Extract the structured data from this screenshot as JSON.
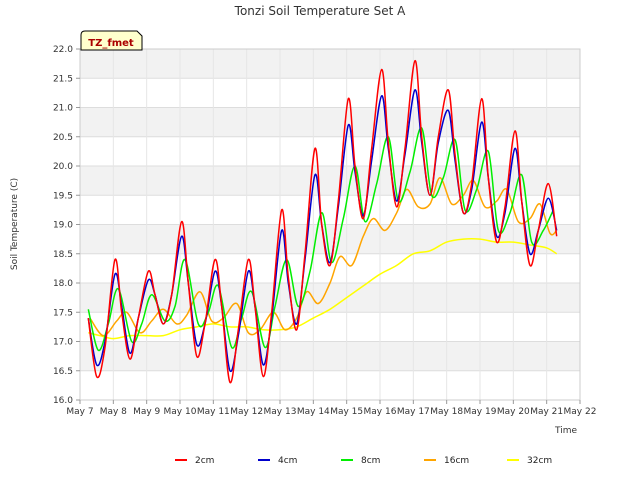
{
  "chart_data": {
    "type": "line",
    "title": "Tonzi Soil Temperature Set A",
    "xlabel": "Time",
    "ylabel": "Soil Temperature (C)",
    "tag": "TZ_fmet",
    "ylim": [
      16.0,
      22.0
    ],
    "yticks": [
      "16.0",
      "16.5",
      "17.0",
      "17.5",
      "18.0",
      "18.5",
      "19.0",
      "19.5",
      "20.0",
      "20.5",
      "21.0",
      "21.5",
      "22.0"
    ],
    "xlim": [
      7,
      22
    ],
    "xticks": [
      {
        "day": 7,
        "label": "May 7"
      },
      {
        "day": 8,
        "label": "May 8"
      },
      {
        "day": 9,
        "label": "May 9"
      },
      {
        "day": 10,
        "label": "May 10"
      },
      {
        "day": 11,
        "label": "May 11"
      },
      {
        "day": 12,
        "label": "May 12"
      },
      {
        "day": 13,
        "label": "May 13"
      },
      {
        "day": 14,
        "label": "May 14"
      },
      {
        "day": 15,
        "label": "May 15"
      },
      {
        "day": 16,
        "label": "May 16"
      },
      {
        "day": 17,
        "label": "May 17"
      },
      {
        "day": 18,
        "label": "May 18"
      },
      {
        "day": 19,
        "label": "May 19"
      },
      {
        "day": 20,
        "label": "May 20"
      },
      {
        "day": 21,
        "label": "May 21"
      },
      {
        "day": 22,
        "label": "May 22"
      }
    ],
    "grid": true,
    "legend_position": "bottom",
    "x_unit": "day of May",
    "series": [
      {
        "name": "2cm",
        "color": "#ff0000",
        "x": [
          7.25,
          7.5,
          7.75,
          8.05,
          8.25,
          8.5,
          8.75,
          9.05,
          9.25,
          9.5,
          9.75,
          10.05,
          10.25,
          10.5,
          10.75,
          11.05,
          11.25,
          11.5,
          11.75,
          12.05,
          12.25,
          12.5,
          12.75,
          13.05,
          13.25,
          13.5,
          13.75,
          14.05,
          14.25,
          14.5,
          14.75,
          15.05,
          15.25,
          15.5,
          15.75,
          16.05,
          16.25,
          16.5,
          16.75,
          17.05,
          17.25,
          17.5,
          17.75,
          18.05,
          18.25,
          18.5,
          18.75,
          19.05,
          19.25,
          19.5,
          19.75,
          20.05,
          20.25,
          20.5,
          20.75,
          21.05,
          21.3
        ],
        "values": [
          17.4,
          16.4,
          16.9,
          18.4,
          17.5,
          16.7,
          17.4,
          18.2,
          17.8,
          17.3,
          17.8,
          19.05,
          18.0,
          16.75,
          17.3,
          18.4,
          17.6,
          16.3,
          17.2,
          18.4,
          17.6,
          16.4,
          17.5,
          19.25,
          18.1,
          17.2,
          18.5,
          20.3,
          19.0,
          18.3,
          19.4,
          21.15,
          20.0,
          19.1,
          20.3,
          21.65,
          20.4,
          19.3,
          20.3,
          21.8,
          20.5,
          19.5,
          20.5,
          21.3,
          20.2,
          19.2,
          19.7,
          21.15,
          19.8,
          18.7,
          19.3,
          20.6,
          19.4,
          18.3,
          18.9,
          19.7,
          18.8
        ]
      },
      {
        "name": "4cm",
        "color": "#0000cc",
        "x": [
          7.25,
          7.5,
          7.75,
          8.05,
          8.25,
          8.5,
          8.75,
          9.05,
          9.25,
          9.5,
          9.75,
          10.05,
          10.25,
          10.5,
          10.75,
          11.05,
          11.25,
          11.5,
          11.75,
          12.05,
          12.25,
          12.5,
          12.75,
          13.05,
          13.25,
          13.5,
          13.75,
          14.05,
          14.25,
          14.5,
          14.75,
          15.05,
          15.25,
          15.5,
          15.75,
          16.05,
          16.25,
          16.5,
          16.75,
          17.05,
          17.25,
          17.5,
          17.75,
          18.05,
          18.25,
          18.5,
          18.75,
          19.05,
          19.25,
          19.5,
          19.75,
          20.05,
          20.25,
          20.5,
          20.75,
          21.05,
          21.3
        ],
        "values": [
          17.4,
          16.6,
          17.0,
          18.15,
          17.6,
          16.8,
          17.4,
          18.05,
          17.8,
          17.3,
          17.8,
          18.8,
          18.0,
          16.95,
          17.3,
          18.2,
          17.6,
          16.5,
          17.1,
          18.2,
          17.6,
          16.6,
          17.4,
          18.9,
          18.0,
          17.3,
          18.4,
          19.85,
          19.0,
          18.35,
          19.3,
          20.7,
          19.9,
          19.15,
          20.1,
          21.2,
          20.3,
          19.4,
          20.2,
          21.3,
          20.4,
          19.5,
          20.4,
          20.95,
          20.1,
          19.2,
          19.6,
          20.75,
          19.8,
          18.8,
          19.2,
          20.3,
          19.4,
          18.5,
          18.9,
          19.45,
          18.9
        ]
      },
      {
        "name": "8cm",
        "color": "#00ee00",
        "x": [
          7.25,
          7.55,
          7.85,
          8.15,
          8.55,
          8.85,
          9.15,
          9.55,
          9.85,
          10.15,
          10.55,
          10.85,
          11.15,
          11.55,
          11.85,
          12.15,
          12.55,
          12.85,
          13.2,
          13.55,
          13.9,
          14.25,
          14.55,
          14.9,
          15.25,
          15.55,
          15.9,
          16.25,
          16.55,
          16.9,
          17.25,
          17.55,
          17.9,
          18.25,
          18.55,
          18.9,
          19.25,
          19.55,
          19.9,
          20.25,
          20.55,
          20.9,
          21.2
        ],
        "values": [
          17.55,
          16.85,
          17.3,
          17.9,
          17.0,
          17.3,
          17.8,
          17.35,
          17.6,
          18.4,
          17.3,
          17.5,
          17.95,
          16.9,
          17.4,
          17.85,
          16.9,
          17.6,
          18.4,
          17.6,
          18.2,
          19.2,
          18.35,
          19.1,
          20.0,
          19.05,
          19.7,
          20.5,
          19.4,
          19.9,
          20.65,
          19.5,
          19.8,
          20.45,
          19.25,
          19.6,
          20.25,
          18.9,
          19.2,
          19.85,
          18.7,
          18.9,
          19.25
        ]
      },
      {
        "name": "16cm",
        "color": "#ffa500",
        "x": [
          7.3,
          7.7,
          8.1,
          8.4,
          8.8,
          9.15,
          9.5,
          9.9,
          10.2,
          10.6,
          10.95,
          11.3,
          11.7,
          12.05,
          12.4,
          12.8,
          13.15,
          13.5,
          13.8,
          14.15,
          14.5,
          14.8,
          15.15,
          15.5,
          15.8,
          16.15,
          16.5,
          16.8,
          17.15,
          17.5,
          17.8,
          18.15,
          18.5,
          18.8,
          19.15,
          19.5,
          19.8,
          20.15,
          20.5,
          20.8,
          21.1,
          21.3
        ],
        "values": [
          17.4,
          17.1,
          17.35,
          17.5,
          17.15,
          17.35,
          17.55,
          17.3,
          17.45,
          17.85,
          17.35,
          17.4,
          17.65,
          17.15,
          17.2,
          17.5,
          17.2,
          17.4,
          17.85,
          17.65,
          18.0,
          18.45,
          18.3,
          18.8,
          19.1,
          18.9,
          19.2,
          19.6,
          19.3,
          19.35,
          19.8,
          19.35,
          19.5,
          19.75,
          19.3,
          19.4,
          19.6,
          19.05,
          19.1,
          19.35,
          18.85,
          18.9
        ]
      },
      {
        "name": "32cm",
        "color": "#ffff00",
        "x": [
          7.25,
          7.6,
          8.0,
          8.5,
          9.0,
          9.5,
          10.0,
          10.5,
          11.0,
          11.5,
          12.0,
          12.5,
          13.0,
          13.5,
          14.0,
          14.5,
          15.0,
          15.5,
          16.0,
          16.5,
          17.0,
          17.5,
          18.0,
          18.5,
          19.0,
          19.5,
          20.0,
          20.5,
          21.0,
          21.3
        ],
        "values": [
          17.15,
          17.1,
          17.05,
          17.1,
          17.1,
          17.1,
          17.2,
          17.25,
          17.3,
          17.25,
          17.25,
          17.2,
          17.2,
          17.25,
          17.4,
          17.55,
          17.75,
          17.95,
          18.15,
          18.3,
          18.5,
          18.55,
          18.7,
          18.75,
          18.75,
          18.7,
          18.7,
          18.65,
          18.6,
          18.5
        ]
      }
    ]
  }
}
